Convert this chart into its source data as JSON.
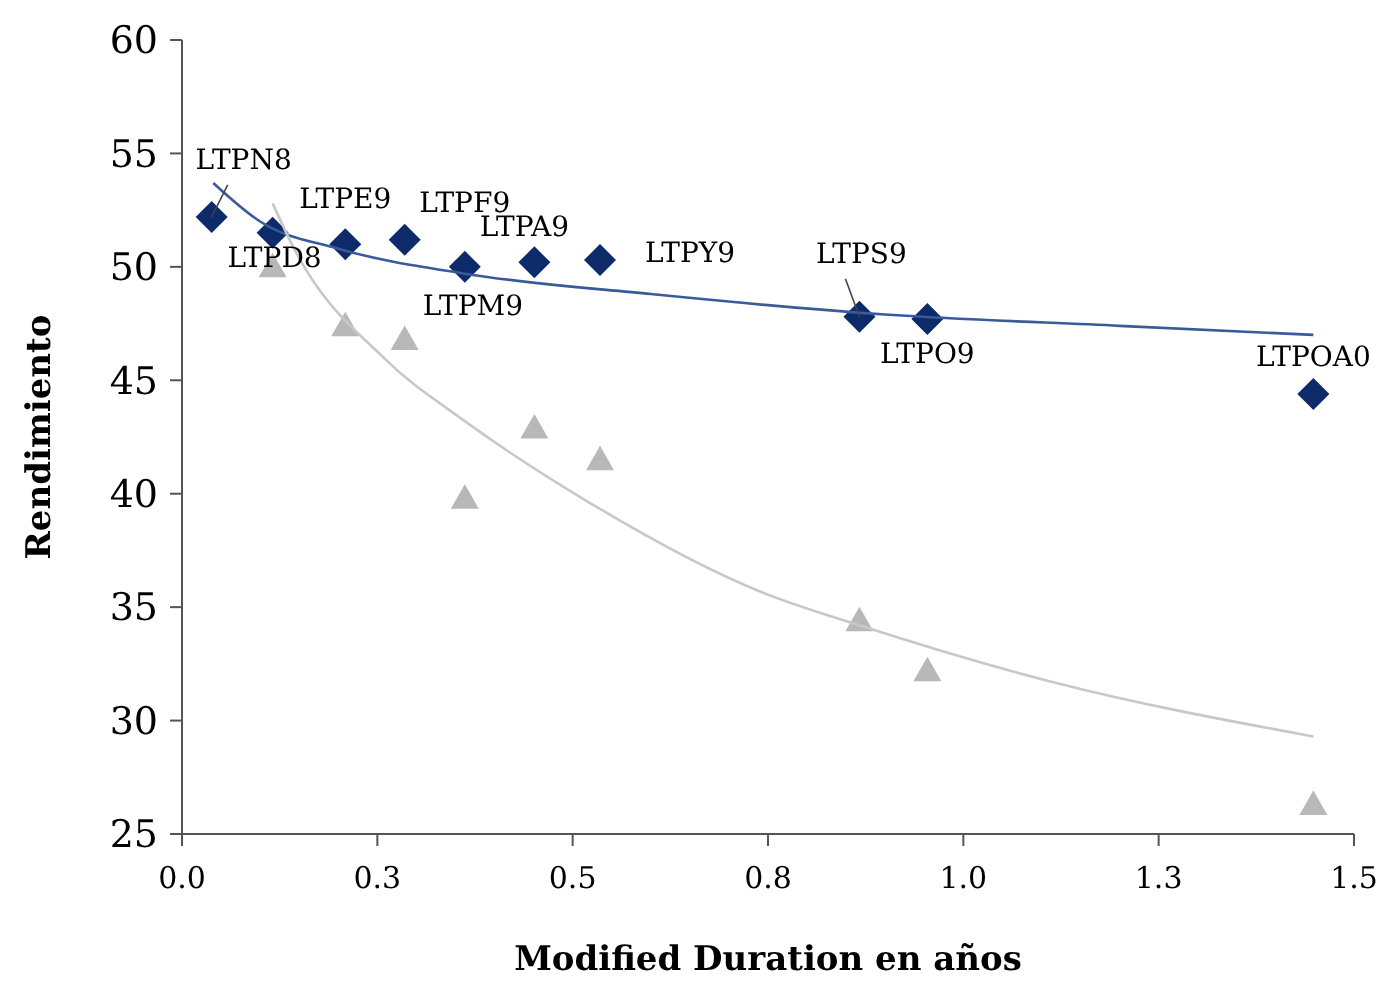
{
  "chart_data": {
    "type": "scatter",
    "xlabel": "Modified Duration en años",
    "ylabel": "Rendimiento",
    "xlim": [
      0,
      1.5
    ],
    "xticks": [
      {
        "value": 0,
        "label": "0.0"
      },
      {
        "value": 0.25,
        "label": "0.3"
      },
      0.5,
      {
        "value": 0.75,
        "label": "0.8"
      },
      {
        "value": 1,
        "label": "1.0"
      },
      {
        "value": 1.25,
        "label": "1.3"
      },
      1.5
    ],
    "ylim": [
      25,
      60
    ],
    "yticks": [
      25,
      30,
      35,
      40,
      45,
      50,
      55,
      60
    ],
    "grid": false,
    "series": [
      {
        "marker": "diamond",
        "color": "#0d2a6b",
        "x": [
          0.038,
          0.116,
          0.209,
          0.285,
          0.362,
          0.451,
          0.535,
          0.867,
          0.954,
          1.448
        ],
        "values": [
          52.2,
          51.5,
          51.0,
          51.2,
          50.0,
          50.2,
          50.3,
          47.8,
          47.7,
          44.4
        ]
      },
      {
        "marker": "triangle",
        "color": "#b8b8b8",
        "x": [
          0.116,
          0.209,
          0.285,
          0.362,
          0.451,
          0.535,
          0.867,
          0.954,
          1.448
        ],
        "values": [
          50.0,
          47.4,
          46.8,
          39.8,
          42.9,
          41.5,
          34.4,
          32.2,
          26.3
        ]
      },
      {
        "type": "line",
        "marker": "none",
        "color": "#3a5a9a",
        "x": [
          0.04,
          0.1,
          0.2,
          0.362,
          0.6,
          0.9,
          1.2,
          1.448
        ],
        "values": [
          53.7,
          52.0,
          50.8,
          49.7,
          48.8,
          47.9,
          47.4,
          47.0
        ]
      },
      {
        "type": "line",
        "marker": "none",
        "color": "#c8c8c8",
        "x": [
          0.116,
          0.142,
          0.261,
          0.362,
          0.517,
          0.739,
          0.867,
          1.114,
          1.448
        ],
        "values": [
          52.8,
          50.9,
          45.9,
          43.2,
          39.7,
          35.7,
          34.2,
          31.7,
          29.3
        ]
      }
    ],
    "annotations": [
      {
        "text": "LTPN8",
        "x": 0.038,
        "y": 52.2
      },
      {
        "text": "LTPD8",
        "x": 0.116,
        "y": 51.5
      },
      {
        "text": "LTPE9",
        "x": 0.209,
        "y": 51.0
      },
      {
        "text": "LTPF9",
        "x": 0.285,
        "y": 51.2
      },
      {
        "text": "LTPM9",
        "x": 0.362,
        "y": 50.0
      },
      {
        "text": "LTPA9",
        "x": 0.451,
        "y": 50.2
      },
      {
        "text": "LTPY9",
        "x": 0.535,
        "y": 50.3
      },
      {
        "text": "LTPS9",
        "x": 0.867,
        "y": 47.8
      },
      {
        "text": "LTPO9",
        "x": 0.954,
        "y": 47.7
      },
      {
        "text": "LTPOA0",
        "x": 1.448,
        "y": 44.4
      }
    ]
  }
}
